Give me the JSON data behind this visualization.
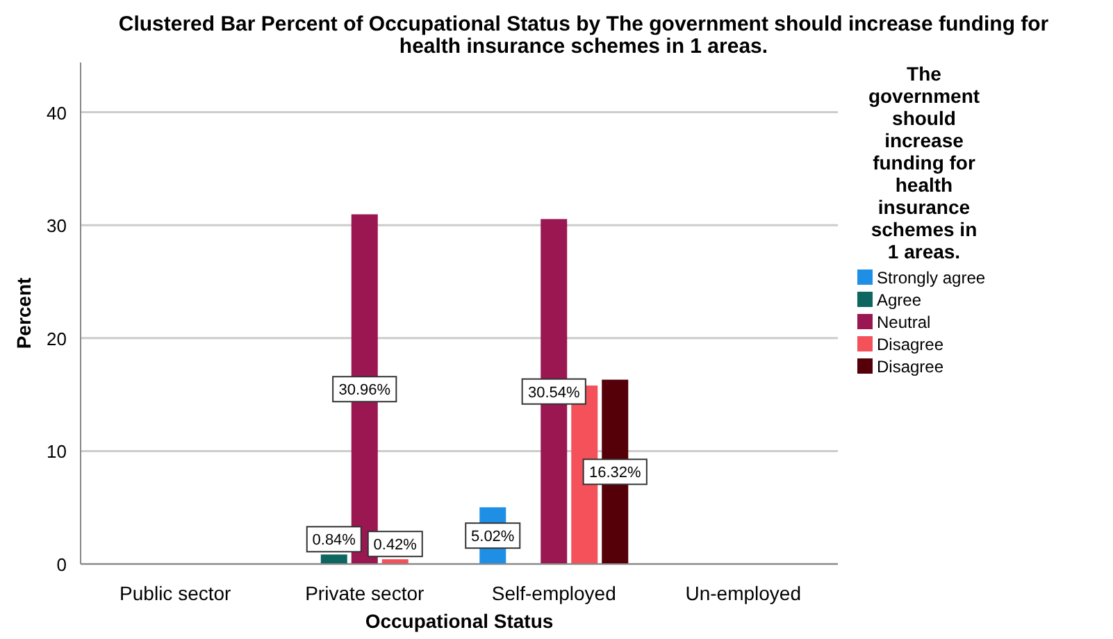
{
  "chart_data": {
    "type": "bar",
    "title": "Clustered Bar Percent of Occupational Status  by The government should increase funding for health insurance schemes in 1 areas.",
    "xlabel": "Occupational Status",
    "ylabel": "Percent",
    "legend_title": "The government should increase funding for health insurance schemes in 1 areas.",
    "categories": [
      "Public sector",
      "Private sector",
      "Self-employed",
      "Un-employed"
    ],
    "series": [
      {
        "name": "Strongly agree",
        "color": "#1f8fe6",
        "values": [
          null,
          null,
          5.02,
          null
        ],
        "value_labels": [
          null,
          null,
          "5.02%",
          null
        ]
      },
      {
        "name": "Agree",
        "color": "#0d6660",
        "values": [
          null,
          0.84,
          null,
          null
        ],
        "value_labels": [
          null,
          "0.84%",
          null,
          null
        ]
      },
      {
        "name": "Neutral",
        "color": "#9b1752",
        "values": [
          null,
          30.96,
          30.54,
          null
        ],
        "value_labels": [
          null,
          "30.96%",
          "30.54%",
          null
        ]
      },
      {
        "name": "Disagree",
        "color": "#f4515a",
        "values": [
          null,
          0.42,
          15.8,
          null
        ],
        "value_labels": [
          null,
          "0.42%",
          null,
          null
        ]
      },
      {
        "name": "Disagree",
        "color": "#550009",
        "values": [
          null,
          null,
          16.32,
          null
        ],
        "value_labels": [
          null,
          null,
          "16.32%",
          null
        ]
      }
    ],
    "ylim": [
      0,
      44.4
    ],
    "yticks": [
      0,
      10,
      20,
      30,
      40
    ],
    "grid": "y",
    "legend": "right"
  }
}
